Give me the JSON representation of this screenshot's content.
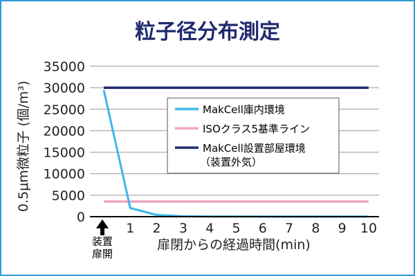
{
  "chart_data": {
    "type": "line",
    "title": "粒子径分布測定",
    "ylabel": "0.5μm微粒子 (個/m³)",
    "xlabel": "扉閉からの経過時間(min)",
    "x_start_marker_label": [
      "装置",
      "扉開"
    ],
    "x_tick_labels": [
      "1",
      "2",
      "3",
      "4",
      "5",
      "6",
      "7",
      "8",
      "9",
      "10"
    ],
    "y_tick_labels": [
      "35000",
      "30000",
      "25000",
      "20000",
      "15000",
      "10000",
      "5000",
      "0"
    ],
    "x": [
      0,
      1,
      2,
      3,
      4,
      5,
      6,
      7,
      8,
      9,
      10
    ],
    "xlim": [
      0,
      10
    ],
    "ylim": [
      0,
      35000
    ],
    "grid": true,
    "legend_position": "center-right",
    "series": [
      {
        "name": "MakCell庫内環境",
        "color": "#3bb7ea",
        "values": [
          29500,
          2000,
          400,
          100,
          50,
          30,
          20,
          15,
          10,
          10,
          10
        ]
      },
      {
        "name": "ISOクラス5基準ライン",
        "color": "#f0a3c0",
        "values": [
          3520,
          3520,
          3520,
          3520,
          3520,
          3520,
          3520,
          3520,
          3520,
          3520,
          3520
        ]
      },
      {
        "name": "MakCell設置部屋環境",
        "name_line2": "（装置外気）",
        "color": "#1f2a6e",
        "values": [
          30000,
          30000,
          30000,
          30000,
          30000,
          30000,
          30000,
          30000,
          30000,
          30000,
          30000
        ]
      }
    ]
  },
  "colors": {
    "title": "#1f2a6e",
    "grid": "#b8b8b8",
    "axis": "#000000",
    "frame": "#2f9bd6"
  }
}
